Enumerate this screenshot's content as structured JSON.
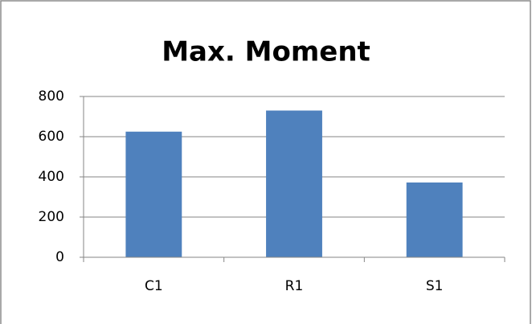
{
  "chart_data": {
    "type": "bar",
    "title": "Max. Moment",
    "categories": [
      "C1",
      "R1",
      "S1"
    ],
    "values": [
      625,
      730,
      372
    ],
    "color": "#4f81bd",
    "ylim": [
      0,
      800
    ],
    "yticks": [
      0,
      200,
      400,
      600,
      800
    ],
    "grid": true
  }
}
